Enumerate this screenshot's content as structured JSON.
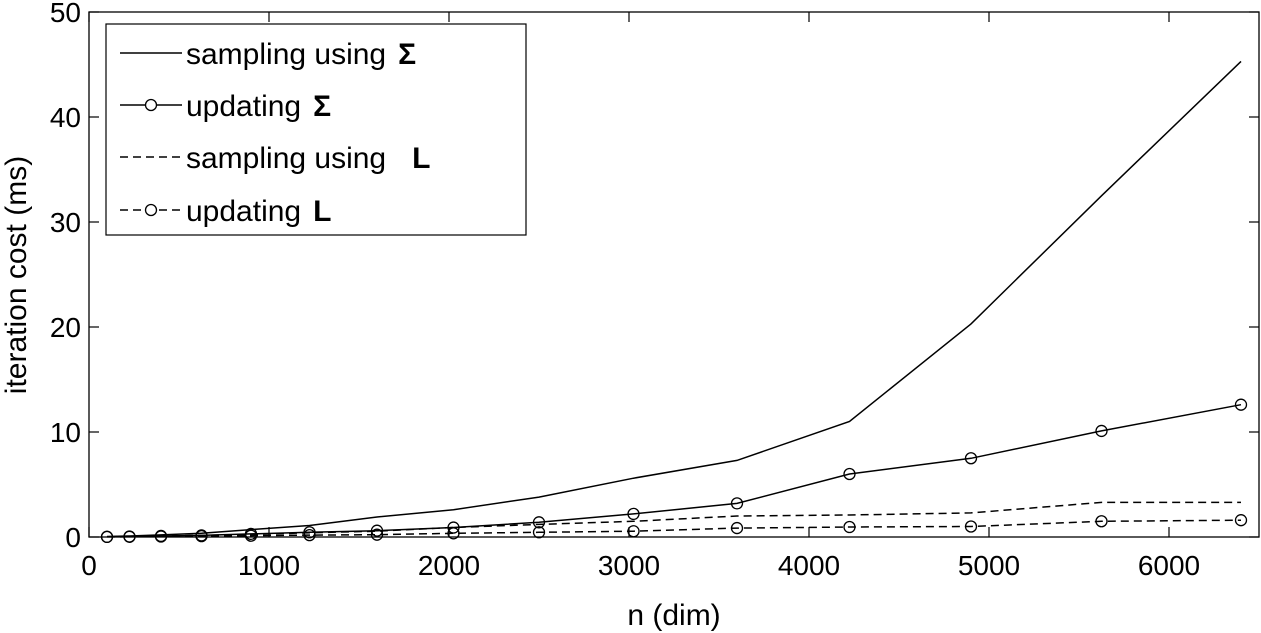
{
  "chart_data": {
    "type": "line",
    "xlabel": "n (dim)",
    "ylabel": "iteration cost (ms)",
    "xlim": [
      0,
      6500
    ],
    "ylim": [
      0,
      50
    ],
    "xticks": [
      0,
      1000,
      2000,
      3000,
      4000,
      5000,
      6000
    ],
    "yticks": [
      0,
      10,
      20,
      30,
      40,
      50
    ],
    "grid": false,
    "legend_position": "top-left",
    "x": [
      100,
      225,
      400,
      625,
      900,
      1225,
      1600,
      2025,
      2500,
      3025,
      3600,
      4225,
      4900,
      5625,
      6400
    ],
    "series": [
      {
        "name": "sampling using Σ",
        "label_text": "sampling using",
        "label_symbol": "Σ",
        "line_style": "solid",
        "marker": "none",
        "values": [
          0.05,
          0.1,
          0.2,
          0.35,
          0.7,
          1.1,
          1.9,
          2.6,
          3.8,
          5.6,
          7.3,
          11.0,
          20.3,
          32.5,
          45.3
        ]
      },
      {
        "name": "updating Σ",
        "label_text": "updating",
        "label_symbol": "Σ",
        "line_style": "solid",
        "marker": "circle",
        "values": [
          0.02,
          0.05,
          0.1,
          0.15,
          0.3,
          0.45,
          0.6,
          0.9,
          1.4,
          2.2,
          3.2,
          6.0,
          7.5,
          10.1,
          12.6
        ]
      },
      {
        "name": "sampling using L",
        "label_text": "sampling using",
        "label_symbol": "L",
        "line_style": "dashed",
        "marker": "none",
        "values": [
          0.02,
          0.05,
          0.1,
          0.15,
          0.25,
          0.4,
          0.55,
          0.9,
          1.2,
          1.5,
          2.0,
          2.1,
          2.3,
          3.3,
          3.3
        ]
      },
      {
        "name": "updating L",
        "label_text": "updating",
        "label_symbol": "L",
        "line_style": "dashed",
        "marker": "circle",
        "values": [
          0.01,
          0.02,
          0.05,
          0.08,
          0.12,
          0.18,
          0.22,
          0.35,
          0.45,
          0.55,
          0.85,
          0.95,
          1.0,
          1.5,
          1.6
        ]
      }
    ]
  }
}
